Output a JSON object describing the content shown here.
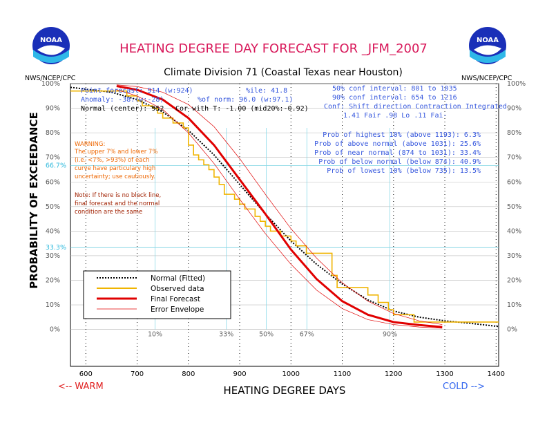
{
  "header": {
    "title": "HEATING DEGREE DAY FORECAST FOR _JFM_2007",
    "subtitle": "Climate Division 71 (Coastal Texas near Houston)",
    "logo_text": "NOAA",
    "agency": "NWS/NCEP/CPC"
  },
  "stats": {
    "point_forecast": "Point forecast: 914 (w:924)",
    "anomaly": "Anomaly: -38:(w:-28)",
    "normal_center": "Normal (center): 952",
    "percentile": "%ile: 41.8",
    "pct_of_norm": "%of norm:   96.0 (w:97.1)",
    "correlation": "Cor with T: -1.00 (mid20%:-0.92)",
    "conf50": "50% conf interval: 801 to 1035",
    "conf90": "90% conf interval: 654 to 1216",
    "conf_header": "Conf: Shift direction   Contraction   Integrated",
    "conf_values": "1.41 Fair        .98 Lo       .11 Fai-"
  },
  "probabilities": [
    "Prob of highest 10% (above 1193): 6.3%",
    "Prob of above normal (above 1031): 25.6%",
    "Prob of near normal (874 to 1031): 33.4%",
    "Prob of below normal (below 874): 40.9%",
    "Prob of lowest 10% (below 735): 13.5%"
  ],
  "warning": {
    "title": "WARNING:",
    "lines": [
      "The upper 7% and lower 7%",
      "(i.e. <7%, >93%) of each",
      "curve have particulary high",
      "uncertainty; use cautiously."
    ]
  },
  "note": {
    "lines": [
      "Note: If there is no black line,",
      "final forecast and  the normal",
      "condition are the same"
    ]
  },
  "legend": [
    {
      "label": "Normal (Fitted)",
      "color": "#000000"
    },
    {
      "label": "Observed data",
      "color": "#f0b400"
    },
    {
      "label": "Final Forecast",
      "color": "#e00000"
    },
    {
      "label": "Error Envelope",
      "color": "#e00000"
    }
  ],
  "bottom": {
    "warm": "<-- WARM",
    "cold": "COLD -->"
  },
  "chart_data": {
    "type": "line",
    "xlabel": "HEATING DEGREE DAYS",
    "ylabel": "PROBABILITY OF EXCEEDANCE",
    "xlim": [
      570,
      1405
    ],
    "ylim": [
      -15,
      100
    ],
    "x_ticks": [
      600,
      700,
      800,
      900,
      1000,
      1100,
      1200,
      1300,
      1400
    ],
    "y_ticks": [
      0,
      10,
      20,
      30,
      40,
      50,
      60,
      70,
      80,
      90,
      100
    ],
    "y_tick_labels": [
      "0%",
      "10%",
      "20%",
      "30%",
      "40%",
      "50%",
      "60%",
      "70%",
      "80%",
      "90%",
      "100%"
    ],
    "special_y_labels": [
      {
        "y": 66.7,
        "label": "66.7%"
      },
      {
        "y": 33.3,
        "label": "33.3%"
      }
    ],
    "percentile_markers": [
      {
        "label": "10%",
        "x": 735
      },
      {
        "label": "33%",
        "x": 874
      },
      {
        "label": "50%",
        "x": 952
      },
      {
        "label": "67%",
        "x": 1031
      },
      {
        "label": "90%",
        "x": 1193
      }
    ],
    "series": [
      {
        "name": "Normal (Fitted)",
        "style": "dotted",
        "color": "#000000",
        "x": [
          570,
          650,
          700,
          750,
          800,
          850,
          900,
          950,
          1000,
          1050,
          1100,
          1150,
          1200,
          1250,
          1300,
          1350,
          1405
        ],
        "y": [
          98.5,
          96.5,
          93.5,
          88.5,
          81,
          71,
          59,
          47,
          36,
          26.5,
          18.5,
          12,
          7.5,
          5,
          3.5,
          2.5,
          1.2
        ]
      },
      {
        "name": "Observed data",
        "style": "step",
        "color": "#f0b400",
        "x": [
          570,
          670,
          680,
          700,
          710,
          730,
          740,
          750,
          770,
          790,
          800,
          810,
          820,
          830,
          840,
          850,
          860,
          870,
          890,
          900,
          910,
          930,
          940,
          950,
          960,
          980,
          1000,
          1010,
          1030,
          1070,
          1080,
          1090,
          1140,
          1150,
          1170,
          1190,
          1200,
          1230,
          1240,
          1405
        ],
        "y": [
          97,
          97,
          95,
          93,
          91,
          90,
          88,
          86,
          84,
          82,
          75,
          71,
          69,
          67,
          65,
          62,
          59,
          55,
          53,
          51,
          49,
          46,
          44,
          42,
          40,
          38,
          36,
          34,
          31,
          31,
          22,
          17,
          17,
          14,
          11,
          8,
          6,
          6,
          3,
          3
        ]
      },
      {
        "name": "Final Forecast",
        "style": "solid",
        "color": "#e00000",
        "x": [
          660,
          700,
          750,
          800,
          850,
          900,
          950,
          1000,
          1050,
          1100,
          1150,
          1200,
          1250,
          1295
        ],
        "y": [
          99,
          97.5,
          93.5,
          86,
          75,
          61,
          47,
          32.5,
          20.5,
          11.5,
          6,
          3,
          1.8,
          1
        ]
      },
      {
        "name": "Error Envelope",
        "style": "thin",
        "color": "#e00000",
        "x": [
          660,
          700,
          750,
          800,
          850,
          900,
          950,
          1000,
          1050,
          1100,
          1150,
          1200,
          1250,
          1295
        ],
        "y": [
          99.5,
          98.8,
          96.5,
          91.5,
          82.5,
          69.5,
          55,
          41,
          29,
          19,
          11.5,
          6.5,
          3.5,
          2
        ]
      },
      {
        "name": "Error Envelope",
        "style": "thin",
        "color": "#e00000",
        "x": [
          660,
          700,
          750,
          800,
          850,
          900,
          950,
          1000,
          1050,
          1100,
          1150,
          1200,
          1250,
          1295
        ],
        "y": [
          97.5,
          95,
          89.5,
          80,
          67.5,
          53,
          39,
          26.5,
          16,
          8.5,
          4,
          2,
          1,
          0.5
        ]
      }
    ]
  }
}
